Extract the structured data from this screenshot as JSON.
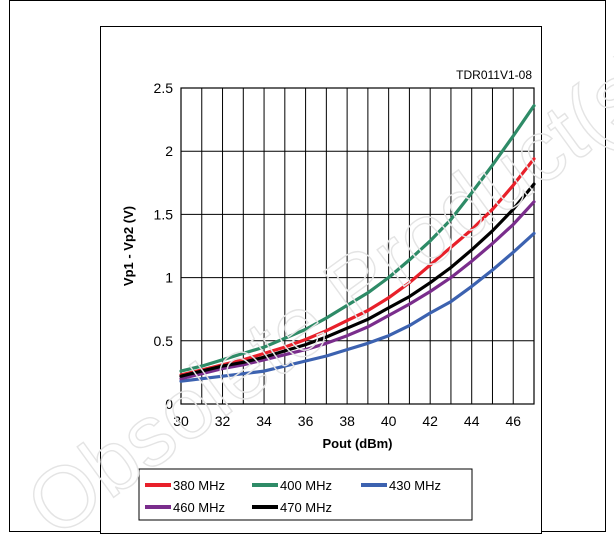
{
  "chart_data": {
    "type": "line",
    "tag": "TDR011V1-08",
    "xlabel": "Pout (dBm)",
    "ylabel": "Vp1 - Vp2 (V)",
    "xlim": [
      30,
      47
    ],
    "ylim": [
      0,
      2.5
    ],
    "x_ticks": [
      "30",
      "32",
      "34",
      "36",
      "38",
      "40",
      "42",
      "44",
      "46"
    ],
    "y_ticks": [
      "0",
      "0.5",
      "1",
      "1.5",
      "2",
      "2.5"
    ],
    "grid": true,
    "legend_position": "bottom",
    "x": [
      30,
      31,
      32,
      33,
      34,
      35,
      36,
      37,
      38,
      39,
      40,
      41,
      42,
      43,
      44,
      45,
      46,
      47
    ],
    "series": [
      {
        "name": "380 MHz",
        "color": "#e8202a",
        "values": [
          0.23,
          0.27,
          0.31,
          0.35,
          0.4,
          0.45,
          0.51,
          0.58,
          0.66,
          0.74,
          0.84,
          0.96,
          1.1,
          1.24,
          1.38,
          1.54,
          1.73,
          1.94
        ]
      },
      {
        "name": "400 MHz",
        "color": "#2e8b67",
        "values": [
          0.26,
          0.3,
          0.35,
          0.4,
          0.45,
          0.52,
          0.59,
          0.68,
          0.78,
          0.88,
          1.0,
          1.14,
          1.29,
          1.46,
          1.67,
          1.89,
          2.12,
          2.36
        ]
      },
      {
        "name": "430 MHz",
        "color": "#3c62b0",
        "values": [
          0.18,
          0.2,
          0.22,
          0.24,
          0.26,
          0.3,
          0.34,
          0.38,
          0.43,
          0.48,
          0.54,
          0.62,
          0.72,
          0.81,
          0.93,
          1.06,
          1.2,
          1.35
        ]
      },
      {
        "name": "460 MHz",
        "color": "#7a2d8c",
        "values": [
          0.2,
          0.24,
          0.28,
          0.31,
          0.35,
          0.39,
          0.43,
          0.48,
          0.54,
          0.61,
          0.7,
          0.79,
          0.89,
          1.0,
          1.13,
          1.27,
          1.42,
          1.6
        ]
      },
      {
        "name": "470 MHz",
        "color": "#000000",
        "values": [
          0.22,
          0.26,
          0.3,
          0.33,
          0.37,
          0.42,
          0.47,
          0.53,
          0.6,
          0.67,
          0.76,
          0.85,
          0.96,
          1.08,
          1.22,
          1.37,
          1.54,
          1.74
        ]
      }
    ]
  },
  "watermark": {
    "text": "Obsolete Product(s) - O",
    "color": "#e4e4e4"
  }
}
